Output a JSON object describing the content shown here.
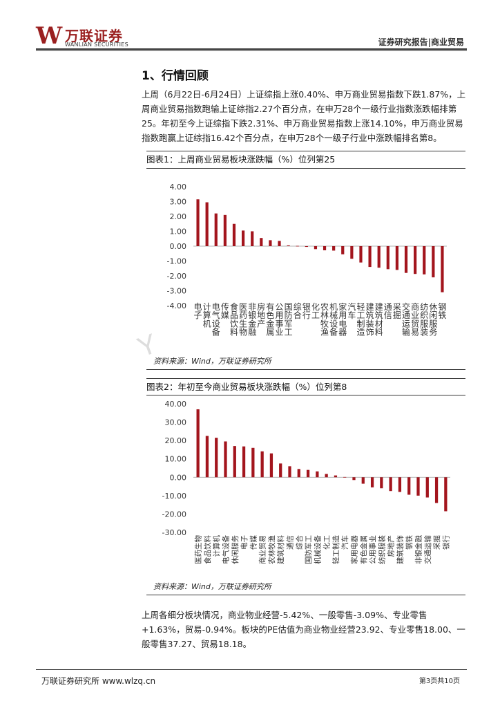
{
  "header": {
    "logo_cn": "万联证券",
    "logo_en": "WANLIAN SECURITIES",
    "right_text": "证券研究报告|商业贸易"
  },
  "section": {
    "title": "1、行情回顾",
    "para1": "上周（6月22日-6月24日）上证综指上涨0.40%、申万商业贸易指数下跌1.87%，上周商业贸易指数跑输上证综指2.27个百分点，在申万28个一级行业指数涨跌幅排第25。年初至今上证综指下跌2.31%、申万商业贸易指数上涨14.10%，申万商业贸易指数跑赢上证综指16.42个百分点，在申万28个一级子行业中涨跌幅排名第8。",
    "para2": "上周各细分板块情况，商业物业经营-5.42%、一般零售-3.09%、专业零售+1.63%，贸易-0.94%。板块的PE估值为商业物业经营23.92、专业零售18.00、一般零售37.27、贸易18.18。"
  },
  "figure1": {
    "title": "图表1：上周商业贸易板块涨跌幅（%）位列第25",
    "source": "资料来源：Wind，万联证券研究所"
  },
  "figure2": {
    "title": "图表2：年初至今商业贸易板块涨跌幅（%）位列第8",
    "source": "资料来源：Wind，万联证券研究所"
  },
  "footer": {
    "left": "万联证券研究所 www.wlzq.cn",
    "right": "第3页共10页"
  },
  "colors": {
    "bar": "#a3151d",
    "brand": "#9a1f1f"
  },
  "chart_data": [
    {
      "type": "bar",
      "title": "",
      "categories": [
        "电子",
        "计算机",
        "电气设备",
        "传媒",
        "食品饮料",
        "医药生物",
        "非银金融",
        "房地产",
        "有色金属",
        "公用事业",
        "国防军工",
        "综合",
        "银行",
        "化工",
        "农林牧渔",
        "机械设备",
        "家用电器",
        "汽车",
        "轻工制造",
        "建筑装饰",
        "建筑材料",
        "通信",
        "采掘",
        "交通运输",
        "商业贸易",
        "纺织服装",
        "休闲服务",
        "钢铁"
      ],
      "values": [
        3.15,
        2.95,
        2.2,
        2.1,
        1.5,
        1.05,
        1.0,
        0.55,
        0.4,
        0.35,
        0.05,
        0.0,
        -0.05,
        -0.2,
        -0.28,
        -0.3,
        -0.55,
        -0.85,
        -1.1,
        -1.4,
        -1.45,
        -1.55,
        -1.6,
        -1.8,
        -1.87,
        -1.9,
        -2.1,
        -3.1
      ],
      "yticks": [
        "4.00",
        "3.00",
        "2.00",
        "1.00",
        "0.00",
        "-1.00",
        "-2.00",
        "-3.00",
        "-4.00"
      ],
      "ylim": [
        -4,
        4
      ]
    },
    {
      "type": "bar",
      "title": "",
      "categories": [
        "医药生物",
        "食品饮料",
        "计算机",
        "电气设备",
        "休闲服务",
        "电子",
        "传媒",
        "商业贸易",
        "农林牧渔",
        "建筑材料",
        "通信",
        "综合",
        "国防军工",
        "机械设备",
        "化工",
        "轻工制造",
        "汽车",
        "家用电器",
        "有色金属",
        "公用事业",
        "纺织服装",
        "房地产",
        "建筑装饰",
        "钢铁",
        "非银金融",
        "交通运输",
        "采掘",
        "银行"
      ],
      "values": [
        37.0,
        22.5,
        21.5,
        19.5,
        17.0,
        16.8,
        16.0,
        14.1,
        13.0,
        7.5,
        6.0,
        4.5,
        4.0,
        3.2,
        1.8,
        1.0,
        0.3,
        -1.5,
        -3.5,
        -5.5,
        -6.0,
        -7.5,
        -8.0,
        -9.5,
        -10.0,
        -11.0,
        -14.0,
        -18.5
      ],
      "yticks": [
        "40.00",
        "30.00",
        "20.00",
        "10.00",
        "0.00",
        "-10.00",
        "-20.00",
        "-30.00"
      ],
      "ylim": [
        -30,
        40
      ]
    }
  ]
}
